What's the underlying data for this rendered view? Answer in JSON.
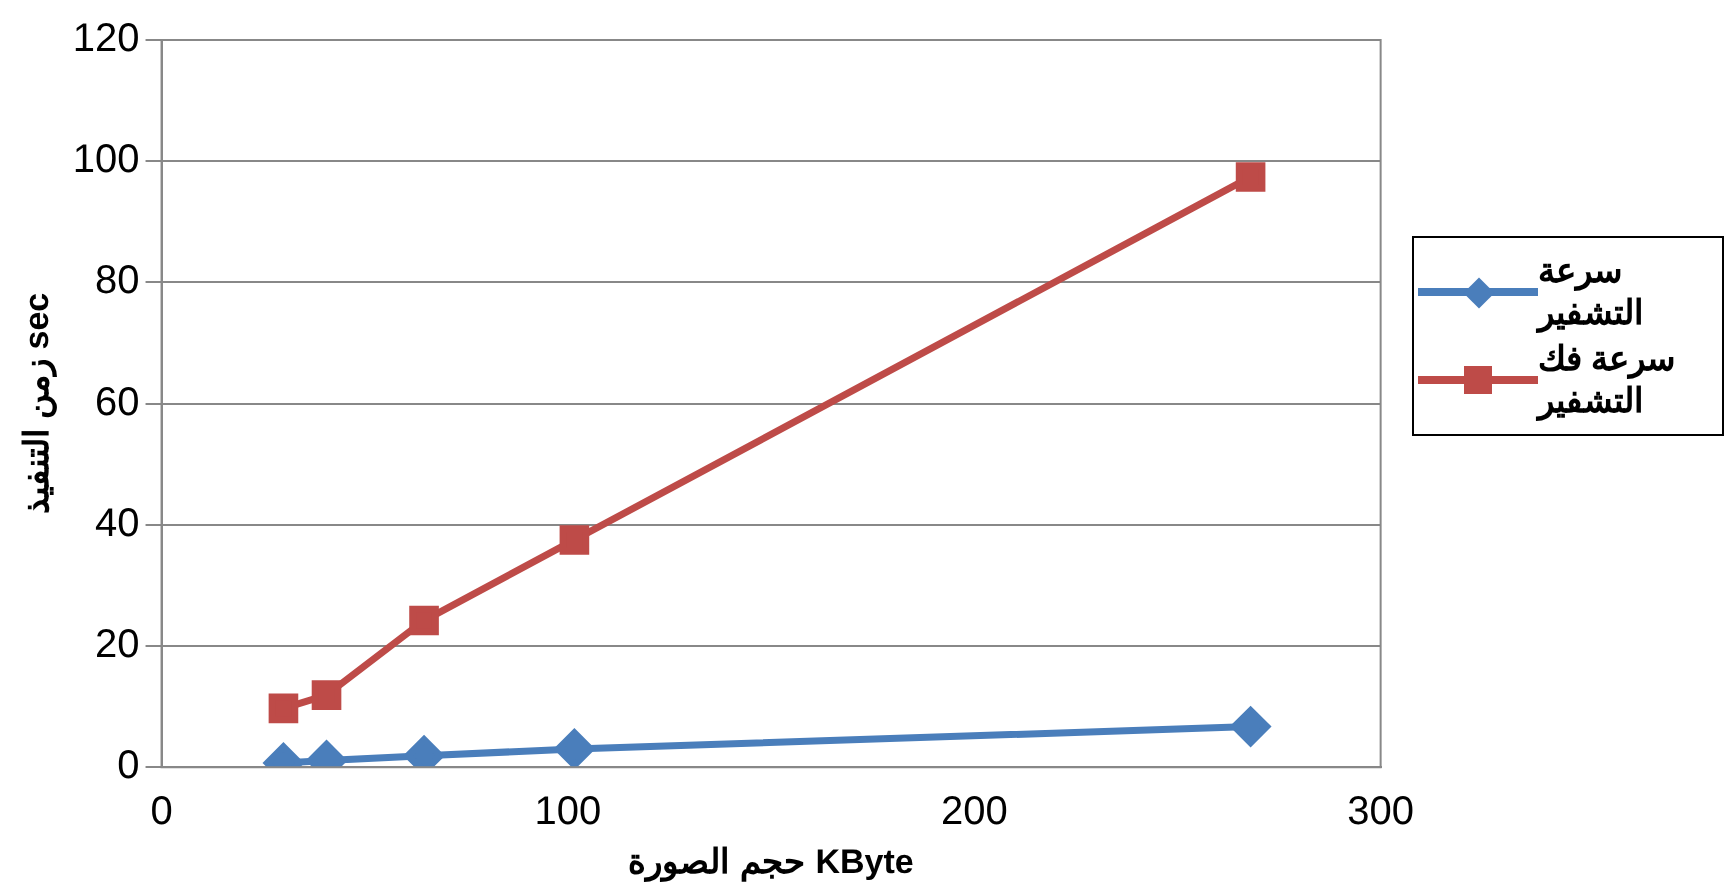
{
  "chart_data": {
    "type": "line",
    "xlabel": "حجم الصورة KByte",
    "ylabel": "زمن التنفيذ sec",
    "x": [
      30,
      40.6,
      64.6,
      101.6,
      268
    ],
    "series": [
      {
        "name": "سرعة التشفير",
        "color": "#4a7ebb",
        "marker": "diamond",
        "values": [
          0.7,
          1.1,
          1.9,
          3,
          6.7
        ]
      },
      {
        "name": "سرعة فك التشفير",
        "color": "#be4b48",
        "marker": "square",
        "values": [
          9.7,
          11.9,
          24.2,
          37.5,
          97.4
        ]
      }
    ],
    "xlim": [
      0,
      300
    ],
    "xticks": [
      0,
      100,
      200,
      300
    ],
    "ylim": [
      0,
      120
    ],
    "yticks": [
      0,
      20,
      40,
      60,
      80,
      100,
      120
    ],
    "grid": "y",
    "legend": "right"
  }
}
